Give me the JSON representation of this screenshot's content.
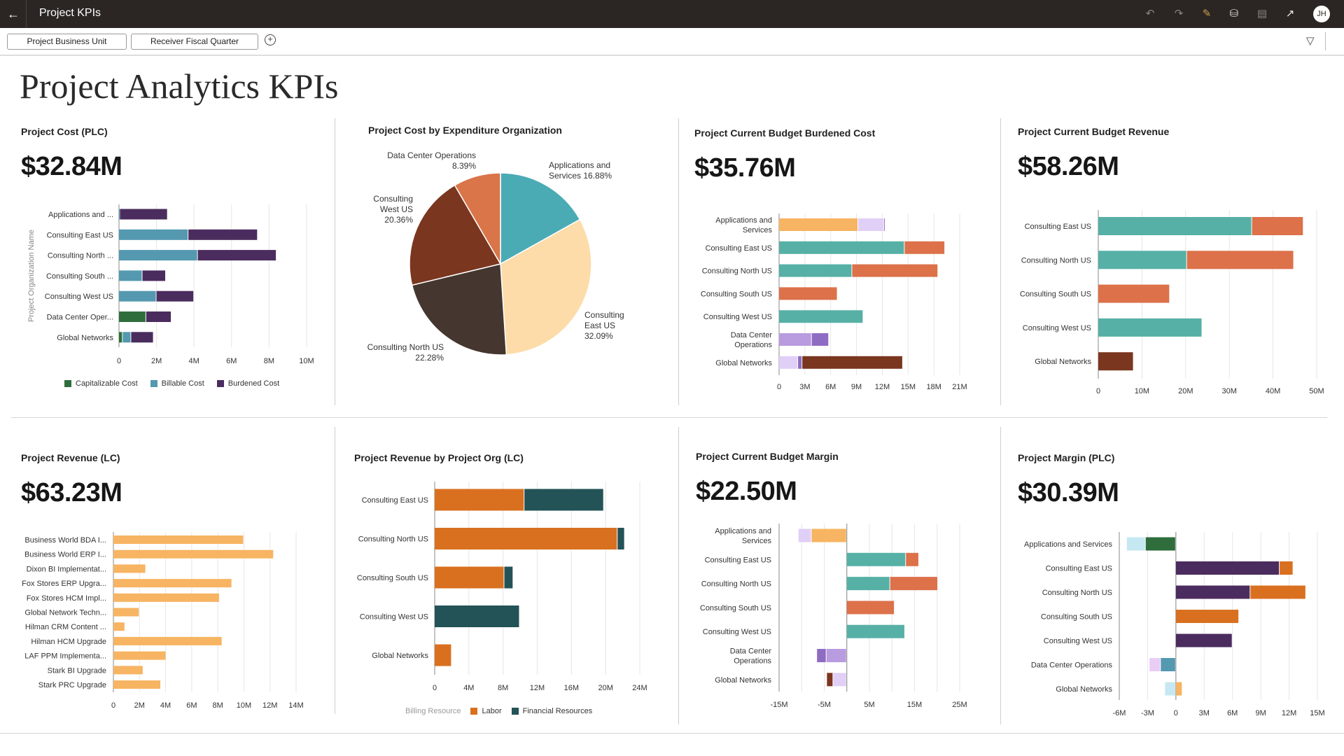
{
  "app": {
    "title": "Project KPIs",
    "avatar_initials": "JH",
    "icons": [
      "back-arrow-icon",
      "undo-icon",
      "redo-icon",
      "edit-icon",
      "data-refresh-icon",
      "comment-icon",
      "open-external-icon",
      "filter-settings-icon",
      "add-circle-icon"
    ]
  },
  "filters": {
    "items": [
      "Project Business Unit",
      "Receiver Fiscal Quarter"
    ]
  },
  "page": {
    "title": "Project Analytics KPIs"
  },
  "tiles": [
    {
      "title": "Project Cost (PLC)",
      "kpi": "$32.84M"
    },
    {
      "title": "Project Cost by Expenditure Organization"
    },
    {
      "title": "Project Current Budget Burdened Cost",
      "kpi": "$35.76M"
    },
    {
      "title": "Project Current Budget Revenue",
      "kpi": "$58.26M"
    },
    {
      "title": "Project Revenue (LC)",
      "kpi": "$63.23M"
    },
    {
      "title": "Project Revenue by Project Org (LC)"
    },
    {
      "title": "Project Current Budget Margin",
      "kpi": "$22.50M"
    },
    {
      "title": "Project Margin (PLC)",
      "kpi": "$30.39M"
    }
  ],
  "chart_data": [
    {
      "type": "bar",
      "orientation": "horizontal",
      "stacked": true,
      "title": "Project Cost (PLC)",
      "ylabel": "Project Organization Name",
      "xlim": [
        0,
        10
      ],
      "xticks": [
        0,
        2,
        4,
        6,
        8,
        10
      ],
      "xtick_labels": [
        "0",
        "2M",
        "4M",
        "6M",
        "8M",
        "10M"
      ],
      "legend": "bottom",
      "grid": true,
      "categories": [
        "Applications and ...",
        "Consulting East US",
        "Consulting North ...",
        "Consulting South ...",
        "Consulting West US",
        "Data Center Oper...",
        "Global Networks"
      ],
      "series": [
        {
          "name": "Capitalizable Cost",
          "color": "#2f6e3c",
          "values": [
            0,
            0,
            0,
            0,
            0,
            1.45,
            0.2
          ]
        },
        {
          "name": "Billable Cost",
          "color": "#5499b0",
          "values": [
            0.05,
            3.7,
            4.2,
            1.25,
            2.0,
            0,
            0.45
          ]
        },
        {
          "name": "Burdened Cost",
          "color": "#4b2c5e",
          "values": [
            2.55,
            3.7,
            4.2,
            1.25,
            2.0,
            1.35,
            1.2
          ]
        }
      ]
    },
    {
      "type": "pie",
      "title": "Project Cost by Expenditure Organization",
      "slices": [
        {
          "label": "Applications and Services",
          "pct_label": "16.88%",
          "value": 16.88,
          "color": "#4aabb5"
        },
        {
          "label": "Consulting East US",
          "pct_label": "32.09%",
          "value": 32.09,
          "color": "#fddcaa"
        },
        {
          "label": "Consulting North US",
          "pct_label": "22.28%",
          "value": 22.28,
          "color": "#45362f"
        },
        {
          "label": "Consulting West US",
          "pct_label": "20.36%",
          "value": 20.36,
          "color": "#7a361f"
        },
        {
          "label": "Data Center Operations",
          "pct_label": "8.39%",
          "value": 8.39,
          "color": "#d97548"
        }
      ]
    },
    {
      "type": "bar",
      "orientation": "horizontal",
      "stacked": true,
      "title": "Project Current Budget Burdened Cost",
      "xlim": [
        0,
        21
      ],
      "grid": true,
      "xticks": [
        0,
        3,
        6,
        9,
        12,
        15,
        18,
        21
      ],
      "xtick_labels": [
        "0",
        "3M",
        "6M",
        "9M",
        "12M",
        "15M",
        "18M",
        "21M"
      ],
      "categories": [
        "Applications and\nServices",
        "Consulting East US",
        "Consulting North US",
        "Consulting South US",
        "Consulting West US",
        "Data Center\nOperations",
        "Global Networks"
      ],
      "series": [
        {
          "color": "#f7b462",
          "values": [
            9.2,
            0,
            0,
            0,
            0,
            0,
            0
          ]
        },
        {
          "color": "#56b0a6",
          "values": [
            0,
            14.6,
            8.5,
            0,
            9.8,
            0,
            0
          ]
        },
        {
          "color": "#b99be0",
          "values": [
            0,
            0,
            0,
            0,
            0,
            3.8,
            0
          ]
        },
        {
          "color": "#e0cff7",
          "values": [
            3.0,
            0,
            0,
            0,
            0,
            0,
            2.2
          ]
        },
        {
          "color": "#8f6cc3",
          "values": [
            0.15,
            0,
            0,
            0,
            0,
            2.0,
            0.5
          ]
        },
        {
          "color": "#dc714a",
          "values": [
            0,
            4.7,
            10.0,
            6.8,
            0,
            0,
            0
          ]
        },
        {
          "color": "#7a361f",
          "values": [
            0,
            0,
            0,
            0,
            0,
            0,
            11.7
          ]
        }
      ]
    },
    {
      "type": "bar",
      "orientation": "horizontal",
      "stacked": true,
      "title": "Project Current Budget Revenue",
      "xlim": [
        0,
        50
      ],
      "grid": true,
      "xticks": [
        0,
        10,
        20,
        30,
        40,
        50
      ],
      "xtick_labels": [
        "0",
        "10M",
        "20M",
        "30M",
        "40M",
        "50M"
      ],
      "categories": [
        "Consulting East US",
        "Consulting North US",
        "Consulting South US",
        "Consulting West US",
        "Global Networks"
      ],
      "series": [
        {
          "color": "#56b0a6",
          "values": [
            35.2,
            20.3,
            0,
            23.8,
            0
          ]
        },
        {
          "color": "#dc714a",
          "values": [
            11.8,
            24.5,
            16.4,
            0,
            0
          ]
        },
        {
          "color": "#7a361f",
          "values": [
            0,
            0,
            0,
            0,
            8.1
          ]
        }
      ]
    },
    {
      "type": "bar",
      "orientation": "horizontal",
      "title": "Project Revenue (LC)",
      "xlim": [
        0,
        14
      ],
      "grid": true,
      "xticks": [
        0,
        2,
        4,
        6,
        8,
        10,
        12,
        14
      ],
      "xtick_labels": [
        "0",
        "2M",
        "4M",
        "6M",
        "8M",
        "10M",
        "12M",
        "14M"
      ],
      "categories": [
        "Business World BDA I...",
        "Business World ERP I...",
        "Dixon BI Implementat...",
        "Fox Stores ERP Upgra...",
        "Fox Stores HCM Impl...",
        "Global Network Techn...",
        "Hilman CRM Content ...",
        "Hilman HCM Upgrade",
        "LAF PPM Implementa...",
        "Stark BI Upgrade",
        "Stark PRC Upgrade"
      ],
      "series": [
        {
          "color": "#f7b462",
          "values": [
            10.0,
            12.3,
            2.5,
            9.1,
            8.15,
            2.0,
            0.9,
            8.35,
            4.05,
            2.3,
            3.65
          ]
        }
      ]
    },
    {
      "type": "bar",
      "orientation": "horizontal",
      "stacked": true,
      "title": "Project Revenue by Project Org (LC)",
      "xlim": [
        0,
        24
      ],
      "grid": true,
      "xticks": [
        0,
        4,
        8,
        12,
        16,
        20,
        24
      ],
      "xtick_labels": [
        "0",
        "4M",
        "8M",
        "12M",
        "16M",
        "20M",
        "24M"
      ],
      "legend": "bottom",
      "legend_title": "Billing Resource",
      "categories": [
        "Consulting East US",
        "Consulting North US",
        "Consulting South US",
        "Consulting West US",
        "Global Networks"
      ],
      "series": [
        {
          "name": "Labor",
          "color": "#d97020",
          "values": [
            10.5,
            21.4,
            8.15,
            0,
            2.0
          ]
        },
        {
          "name": "Financial Resources",
          "color": "#235357",
          "values": [
            9.3,
            0.85,
            1.05,
            9.95,
            0
          ]
        }
      ]
    },
    {
      "type": "bar",
      "orientation": "horizontal",
      "stacked": true,
      "title": "Project Current Budget Margin",
      "xlim": [
        -15,
        25
      ],
      "grid": true,
      "xticks": [
        -15,
        -5,
        5,
        15,
        25
      ],
      "xtick_labels": [
        "-15M",
        "-5M",
        "5M",
        "15M",
        "25M"
      ],
      "categories": [
        "Applications and\nServices",
        "Consulting East US",
        "Consulting North US",
        "Consulting South US",
        "Consulting West US",
        "Data Center\nOperations",
        "Global Networks"
      ],
      "series": [
        {
          "color": "#f7b462",
          "values": [
            -7.8,
            0,
            0,
            0,
            0,
            0,
            0
          ]
        },
        {
          "color": "#56b0a6",
          "values": [
            0,
            13.1,
            9.6,
            0,
            12.9,
            0,
            0
          ]
        },
        {
          "color": "#b99be0",
          "values": [
            0,
            0,
            0,
            0,
            0,
            -4.5,
            0
          ]
        },
        {
          "color": "#e0cff7",
          "values": [
            -2.9,
            0,
            0,
            0,
            0,
            0,
            -3.0
          ]
        },
        {
          "color": "#8f6cc3",
          "values": [
            0,
            0,
            0,
            0,
            0,
            -2.1,
            0
          ]
        },
        {
          "color": "#dc714a",
          "values": [
            0,
            2.9,
            10.6,
            10.6,
            0,
            0,
            0
          ]
        },
        {
          "color": "#7a361f",
          "values": [
            0,
            0,
            0,
            0,
            0,
            0,
            -1.4
          ]
        }
      ]
    },
    {
      "type": "bar",
      "orientation": "horizontal",
      "stacked": true,
      "title": "Project Margin (PLC)",
      "xlim": [
        -6,
        15
      ],
      "grid": true,
      "xticks": [
        -6,
        -3,
        0,
        3,
        6,
        9,
        12,
        15
      ],
      "xtick_labels": [
        "-6M",
        "-3M",
        "0",
        "3M",
        "6M",
        "9M",
        "12M",
        "15M"
      ],
      "categories": [
        "Applications and Services",
        "Consulting East US",
        "Consulting North US",
        "Consulting South US",
        "Consulting West US",
        "Data Center Operations",
        "Global Networks"
      ],
      "series": [
        {
          "color": "#2f6e3c",
          "values": [
            -3.2,
            0,
            0,
            0,
            0,
            0,
            0
          ]
        },
        {
          "color": "#4b2c5e",
          "values": [
            0,
            11.0,
            7.9,
            0,
            6.0,
            0,
            0
          ]
        },
        {
          "color": "#d97020",
          "values": [
            0,
            1.45,
            5.9,
            6.7,
            0,
            0,
            0.0
          ]
        },
        {
          "color": "#5499b0",
          "values": [
            0,
            0,
            0,
            0,
            0,
            -1.6,
            0
          ]
        },
        {
          "color": "#c5e8f2",
          "values": [
            -2.0,
            0,
            0,
            0,
            0,
            0,
            -1.15
          ]
        },
        {
          "color": "#e9cdf5",
          "values": [
            0,
            0,
            0,
            0,
            0,
            -1.2,
            0
          ]
        },
        {
          "color": "#f7b462",
          "values": [
            0,
            0,
            0,
            0,
            0,
            0,
            0.7
          ]
        }
      ]
    }
  ]
}
